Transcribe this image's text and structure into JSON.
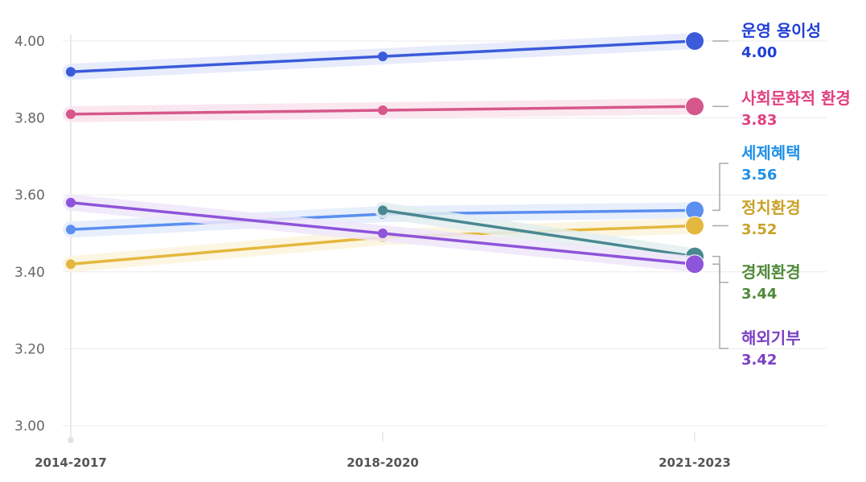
{
  "chart_data": {
    "type": "line",
    "categories": [
      "2014-2017",
      "2018-2020",
      "2021-2023"
    ],
    "ylim": [
      3.0,
      4.0
    ],
    "yticks": [
      "3.00",
      "3.20",
      "3.40",
      "3.60",
      "3.80",
      "4.00"
    ],
    "grid": true,
    "series": [
      {
        "name": "운영 용이성",
        "values": [
          3.92,
          3.96,
          4.0
        ],
        "label": "4.00",
        "color": "#3b5bdb",
        "label_color": "#1f3fd6",
        "band": "#e3e8fb"
      },
      {
        "name": "사회문화적 환경",
        "values": [
          3.81,
          3.82,
          3.83
        ],
        "label": "3.83",
        "color": "#d6588a",
        "label_color": "#e0407f",
        "band": "#fae3ec"
      },
      {
        "name": "세제혜택",
        "values": [
          3.51,
          3.55,
          3.56
        ],
        "label": "3.56",
        "color": "#5b8ff0",
        "label_color": "#1e90e8",
        "band": "#e3ecfc"
      },
      {
        "name": "정치환경",
        "values": [
          3.42,
          3.49,
          3.52
        ],
        "label": "3.52",
        "color": "#e4b83e",
        "label_color": "#c9a227",
        "band": "#fbf3dc"
      },
      {
        "name": "경제환경",
        "values": [
          null,
          3.56,
          3.44
        ],
        "label": "3.44",
        "color": "#4a8891",
        "label_color": "#4f8a3a",
        "band": "#e3eff0"
      },
      {
        "name": "해외기부",
        "values": [
          3.58,
          3.5,
          3.42
        ],
        "label": "3.42",
        "color": "#8e54d9",
        "label_color": "#7a3fc4",
        "band": "#efe6fa"
      }
    ]
  }
}
